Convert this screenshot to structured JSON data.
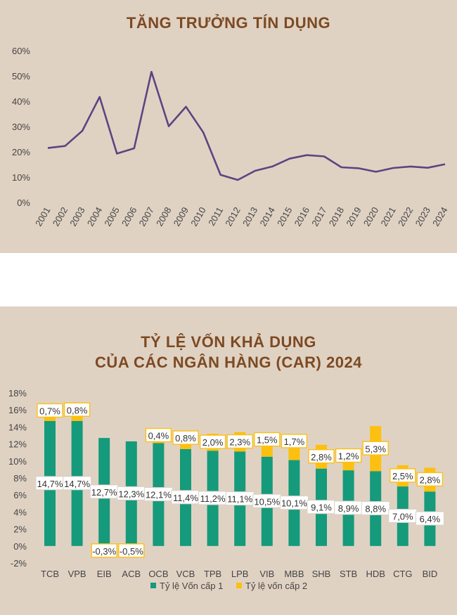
{
  "credit_growth": {
    "title": "TĂNG TRƯỞNG TÍN DỤNG",
    "chart_data": {
      "type": "line",
      "title": "TĂNG TRƯỞNG TÍN DỤNG",
      "x": [
        "2001",
        "2002",
        "2003",
        "2004",
        "2005",
        "2006",
        "2007",
        "2008",
        "2009",
        "2010",
        "2011",
        "2012",
        "2013",
        "2014",
        "2015",
        "2016",
        "2017",
        "2018",
        "2019",
        "2020",
        "2021",
        "2022",
        "2023",
        "2024"
      ],
      "y": [
        21.5,
        22.3,
        28.3,
        41.7,
        19.3,
        21.4,
        51.6,
        30.1,
        37.8,
        27.7,
        10.9,
        8.9,
        12.5,
        14.2,
        17.3,
        18.7,
        18.2,
        13.9,
        13.5,
        12.1,
        13.6,
        14.2,
        13.7,
        15.1
      ],
      "y_ticks": [
        "0%",
        "10%",
        "20%",
        "30%",
        "40%",
        "50%",
        "60%"
      ],
      "ylim": [
        0,
        60
      ],
      "grid": false,
      "line_color": "#5b4581"
    }
  },
  "car": {
    "title_line1": "TỶ LỆ VỐN KHẢ DỤNG",
    "title_line2": "CỦA CÁC NGÂN HÀNG (CAR) 2024",
    "chart_data": {
      "type": "bar",
      "stacked": true,
      "categories": [
        "TCB",
        "VPB",
        "EIB",
        "ACB",
        "OCB",
        "VCB",
        "TPB",
        "LPB",
        "VIB",
        "MBB",
        "SHB",
        "STB",
        "HDB",
        "CTG",
        "BID"
      ],
      "series": [
        {
          "name": "Tỷ lệ Vốn cấp 1",
          "color": "#159a7b",
          "values": [
            14.7,
            14.7,
            12.7,
            12.3,
            12.1,
            11.4,
            11.2,
            11.1,
            10.5,
            10.1,
            9.1,
            8.9,
            8.8,
            7.0,
            6.4
          ],
          "labels": [
            "14,7%",
            "14,7%",
            "12,7%",
            "12,3%",
            "12,1%",
            "11,4%",
            "11,2%",
            "11,1%",
            "10,5%",
            "10,1%",
            "9,1%",
            "8,9%",
            "8,8%",
            "7,0%",
            "6,4%"
          ]
        },
        {
          "name": "Tỷ lệ vốn cấp 2",
          "color": "#fcc010",
          "values": [
            0.7,
            0.8,
            -0.3,
            -0.5,
            0.4,
            0.8,
            2.0,
            2.3,
            1.5,
            1.7,
            2.8,
            1.2,
            5.3,
            2.5,
            2.8
          ],
          "labels": [
            "0,7%",
            "0,8%",
            "-0,3%",
            "-0,5%",
            "0,4%",
            "0,8%",
            "2,0%",
            "2,3%",
            "1,5%",
            "1,7%",
            "2,8%",
            "1,2%",
            "5,3%",
            "2,5%",
            "2,8%"
          ]
        }
      ],
      "y_ticks": [
        "-2%",
        "0%",
        "2%",
        "4%",
        "6%",
        "8%",
        "10%",
        "12%",
        "14%",
        "16%",
        "18%"
      ],
      "ylim": [
        -2,
        18
      ],
      "grid": false,
      "legend_position": "bottom"
    }
  }
}
